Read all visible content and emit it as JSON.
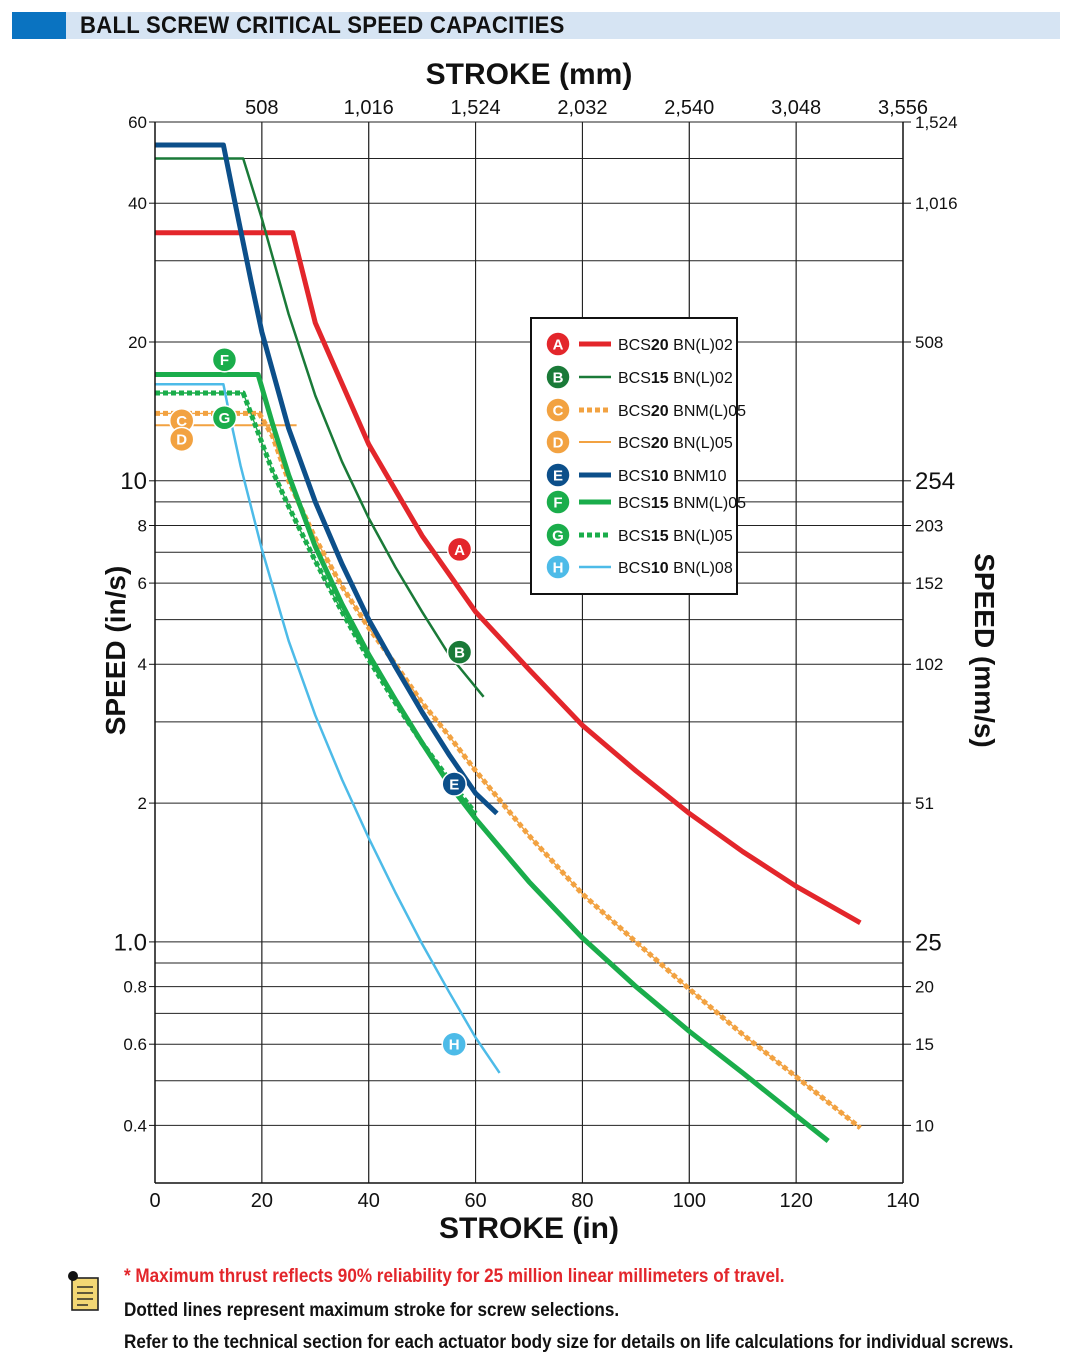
{
  "header": {
    "title": "BALL SCREW CRITICAL SPEED CAPACITIES"
  },
  "notes": {
    "thrust": "* Maximum thrust reflects 90% reliability for 25 million linear millimeters of travel.",
    "dotted": "Dotted lines represent maximum stroke for screw selections.",
    "refer": "Refer to the technical section for each actuator body size for details on life calculations for individual screws.",
    "icon": "note-icon"
  },
  "chart_data": {
    "type": "line",
    "xlabel": "STROKE (in)",
    "x2label": "STROKE (mm)",
    "ylabel": "SPEED (in/s)",
    "y2label": "SPEED (mm/s)",
    "xlim": [
      0,
      140
    ],
    "ylim": [
      0.3,
      60
    ],
    "yscale": "log",
    "grid": true,
    "legend_position": "center-right",
    "x_ticks": [
      "0",
      "20",
      "40",
      "60",
      "80",
      "100",
      "120",
      "140"
    ],
    "x_ticks_values": [
      0,
      20,
      40,
      60,
      80,
      100,
      120,
      140
    ],
    "x2_ticks": [
      {
        "label": "508",
        "value": 20
      },
      {
        "label": "1,016",
        "value": 40
      },
      {
        "label": "1,524",
        "value": 60
      },
      {
        "label": "2,032",
        "value": 80
      },
      {
        "label": "2,540",
        "value": 100
      },
      {
        "label": "3,048",
        "value": 120
      },
      {
        "label": "3,556",
        "value": 140
      }
    ],
    "y_ticks": [
      {
        "label": "60",
        "value": 60,
        "size": "small"
      },
      {
        "label": "40",
        "value": 40,
        "size": "small"
      },
      {
        "label": "20",
        "value": 20,
        "size": "small"
      },
      {
        "label": "10",
        "value": 10,
        "size": "large"
      },
      {
        "label": "8",
        "value": 8,
        "size": "small"
      },
      {
        "label": "6",
        "value": 6,
        "size": "small"
      },
      {
        "label": "4",
        "value": 4,
        "size": "small"
      },
      {
        "label": "2",
        "value": 2,
        "size": "small"
      },
      {
        "label": "1.0",
        "value": 1.0,
        "size": "large"
      },
      {
        "label": "0.8",
        "value": 0.8,
        "size": "small"
      },
      {
        "label": "0.6",
        "value": 0.6,
        "size": "small"
      },
      {
        "label": "0.4",
        "value": 0.4,
        "size": "small"
      }
    ],
    "y2_ticks": [
      {
        "label": "1,524",
        "value": 60,
        "size": "small"
      },
      {
        "label": "1,016",
        "value": 40,
        "size": "small"
      },
      {
        "label": "508",
        "value": 20,
        "size": "small"
      },
      {
        "label": "254",
        "value": 10,
        "size": "large"
      },
      {
        "label": "203",
        "value": 8,
        "size": "small"
      },
      {
        "label": "152",
        "value": 6,
        "size": "small"
      },
      {
        "label": "102",
        "value": 4,
        "size": "small"
      },
      {
        "label": "51",
        "value": 2,
        "size": "small"
      },
      {
        "label": "25",
        "value": 1.0,
        "size": "large"
      },
      {
        "label": "20",
        "value": 0.8,
        "size": "small"
      },
      {
        "label": "15",
        "value": 0.6,
        "size": "small"
      },
      {
        "label": "10",
        "value": 0.4,
        "size": "small"
      }
    ],
    "series": [
      {
        "letter": "A",
        "prefix": "BCS",
        "bold": "20",
        "suffix": " BN(L)02",
        "color": "#e3262b",
        "width": 5,
        "dash": "",
        "x": [
          0,
          25.8,
          30,
          40,
          50,
          60,
          70,
          80,
          90,
          100,
          110,
          120,
          132
        ],
        "y": [
          34.5,
          34.5,
          22.0,
          12.0,
          7.6,
          5.2,
          3.9,
          2.95,
          2.35,
          1.9,
          1.57,
          1.32,
          1.1
        ],
        "badge": [
          57,
          7.1
        ]
      },
      {
        "letter": "B",
        "prefix": "BCS",
        "bold": "15",
        "suffix": " BN(L)02",
        "color": "#1a7a38",
        "width": 2.5,
        "dash": "",
        "x": [
          0,
          16.5,
          20,
          25,
          30,
          35,
          40,
          45,
          50,
          55,
          61.5
        ],
        "y": [
          50,
          50,
          37,
          23,
          15.3,
          11.0,
          8.3,
          6.5,
          5.2,
          4.2,
          3.4
        ],
        "badge": [
          57,
          4.25
        ]
      },
      {
        "letter": "C",
        "prefix": "BCS",
        "bold": "20",
        "suffix": " BNM(L)05",
        "color": "#f2a241",
        "width": 5,
        "dash": "5 3",
        "x": [
          0,
          19.5,
          22,
          25,
          30,
          35,
          40,
          45,
          50,
          55,
          60,
          70,
          80,
          90,
          100,
          110,
          120,
          132
        ],
        "y": [
          14.0,
          14.0,
          12.5,
          10.0,
          7.5,
          5.9,
          4.8,
          4.0,
          3.3,
          2.8,
          2.35,
          1.7,
          1.27,
          1.0,
          0.79,
          0.63,
          0.51,
          0.395
        ],
        "badge": [
          5,
          13.5
        ]
      },
      {
        "letter": "D",
        "prefix": "BCS",
        "bold": "20",
        "suffix": " BN(L)05",
        "color": "#f2a241",
        "width": 2,
        "dash": "",
        "x": [
          0,
          26.5
        ],
        "y": [
          13.2,
          13.2
        ],
        "badge": [
          5,
          12.3
        ]
      },
      {
        "letter": "E",
        "prefix": "BCS",
        "bold": "10",
        "suffix": " BNM10",
        "color": "#0c4f8a",
        "width": 5,
        "dash": "",
        "x": [
          0,
          12.8,
          15,
          18,
          20,
          25,
          30,
          35,
          40,
          45,
          50,
          55,
          60,
          64
        ],
        "y": [
          53.5,
          53.5,
          40,
          27,
          21,
          13,
          9.0,
          6.6,
          5.0,
          3.95,
          3.15,
          2.55,
          2.1,
          1.9
        ],
        "badge": [
          56,
          2.2
        ]
      },
      {
        "letter": "F",
        "prefix": "BCS",
        "bold": "15",
        "suffix": " BNM(L)05",
        "color": "#1aad4b",
        "width": 5,
        "dash": "",
        "x": [
          0,
          19.3,
          22,
          25,
          30,
          35,
          40,
          45,
          50,
          55,
          60,
          70,
          80,
          90,
          100,
          110,
          120,
          126
        ],
        "y": [
          17.0,
          17.0,
          13.3,
          10.3,
          7.2,
          5.4,
          4.2,
          3.35,
          2.7,
          2.2,
          1.85,
          1.35,
          1.02,
          0.8,
          0.64,
          0.52,
          0.42,
          0.37
        ],
        "badge": [
          13,
          18.3
        ]
      },
      {
        "letter": "G",
        "prefix": "BCS",
        "bold": "15",
        "suffix": " BN(L)05",
        "color": "#1aad4b",
        "width": 5,
        "dash": "5 3",
        "x": [
          0,
          16.5,
          19,
          22,
          25,
          30,
          35,
          40,
          45,
          50,
          55,
          60
        ],
        "y": [
          15.5,
          15.5,
          13.0,
          10.5,
          8.8,
          6.7,
          5.2,
          4.1,
          3.3,
          2.7,
          2.25,
          1.9
        ],
        "badge": [
          13,
          13.7
        ]
      },
      {
        "letter": "H",
        "prefix": "BCS",
        "bold": "10",
        "suffix": " BN(L)08",
        "color": "#4dbbe8",
        "width": 2.5,
        "dash": "",
        "x": [
          0,
          12.8,
          14,
          16,
          20,
          25,
          30,
          35,
          40,
          45,
          50,
          55,
          60,
          64.5
        ],
        "y": [
          16.2,
          16.2,
          13.8,
          10.8,
          7.1,
          4.5,
          3.1,
          2.25,
          1.68,
          1.28,
          0.99,
          0.78,
          0.62,
          0.52
        ],
        "badge": [
          56,
          0.6
        ]
      }
    ]
  }
}
